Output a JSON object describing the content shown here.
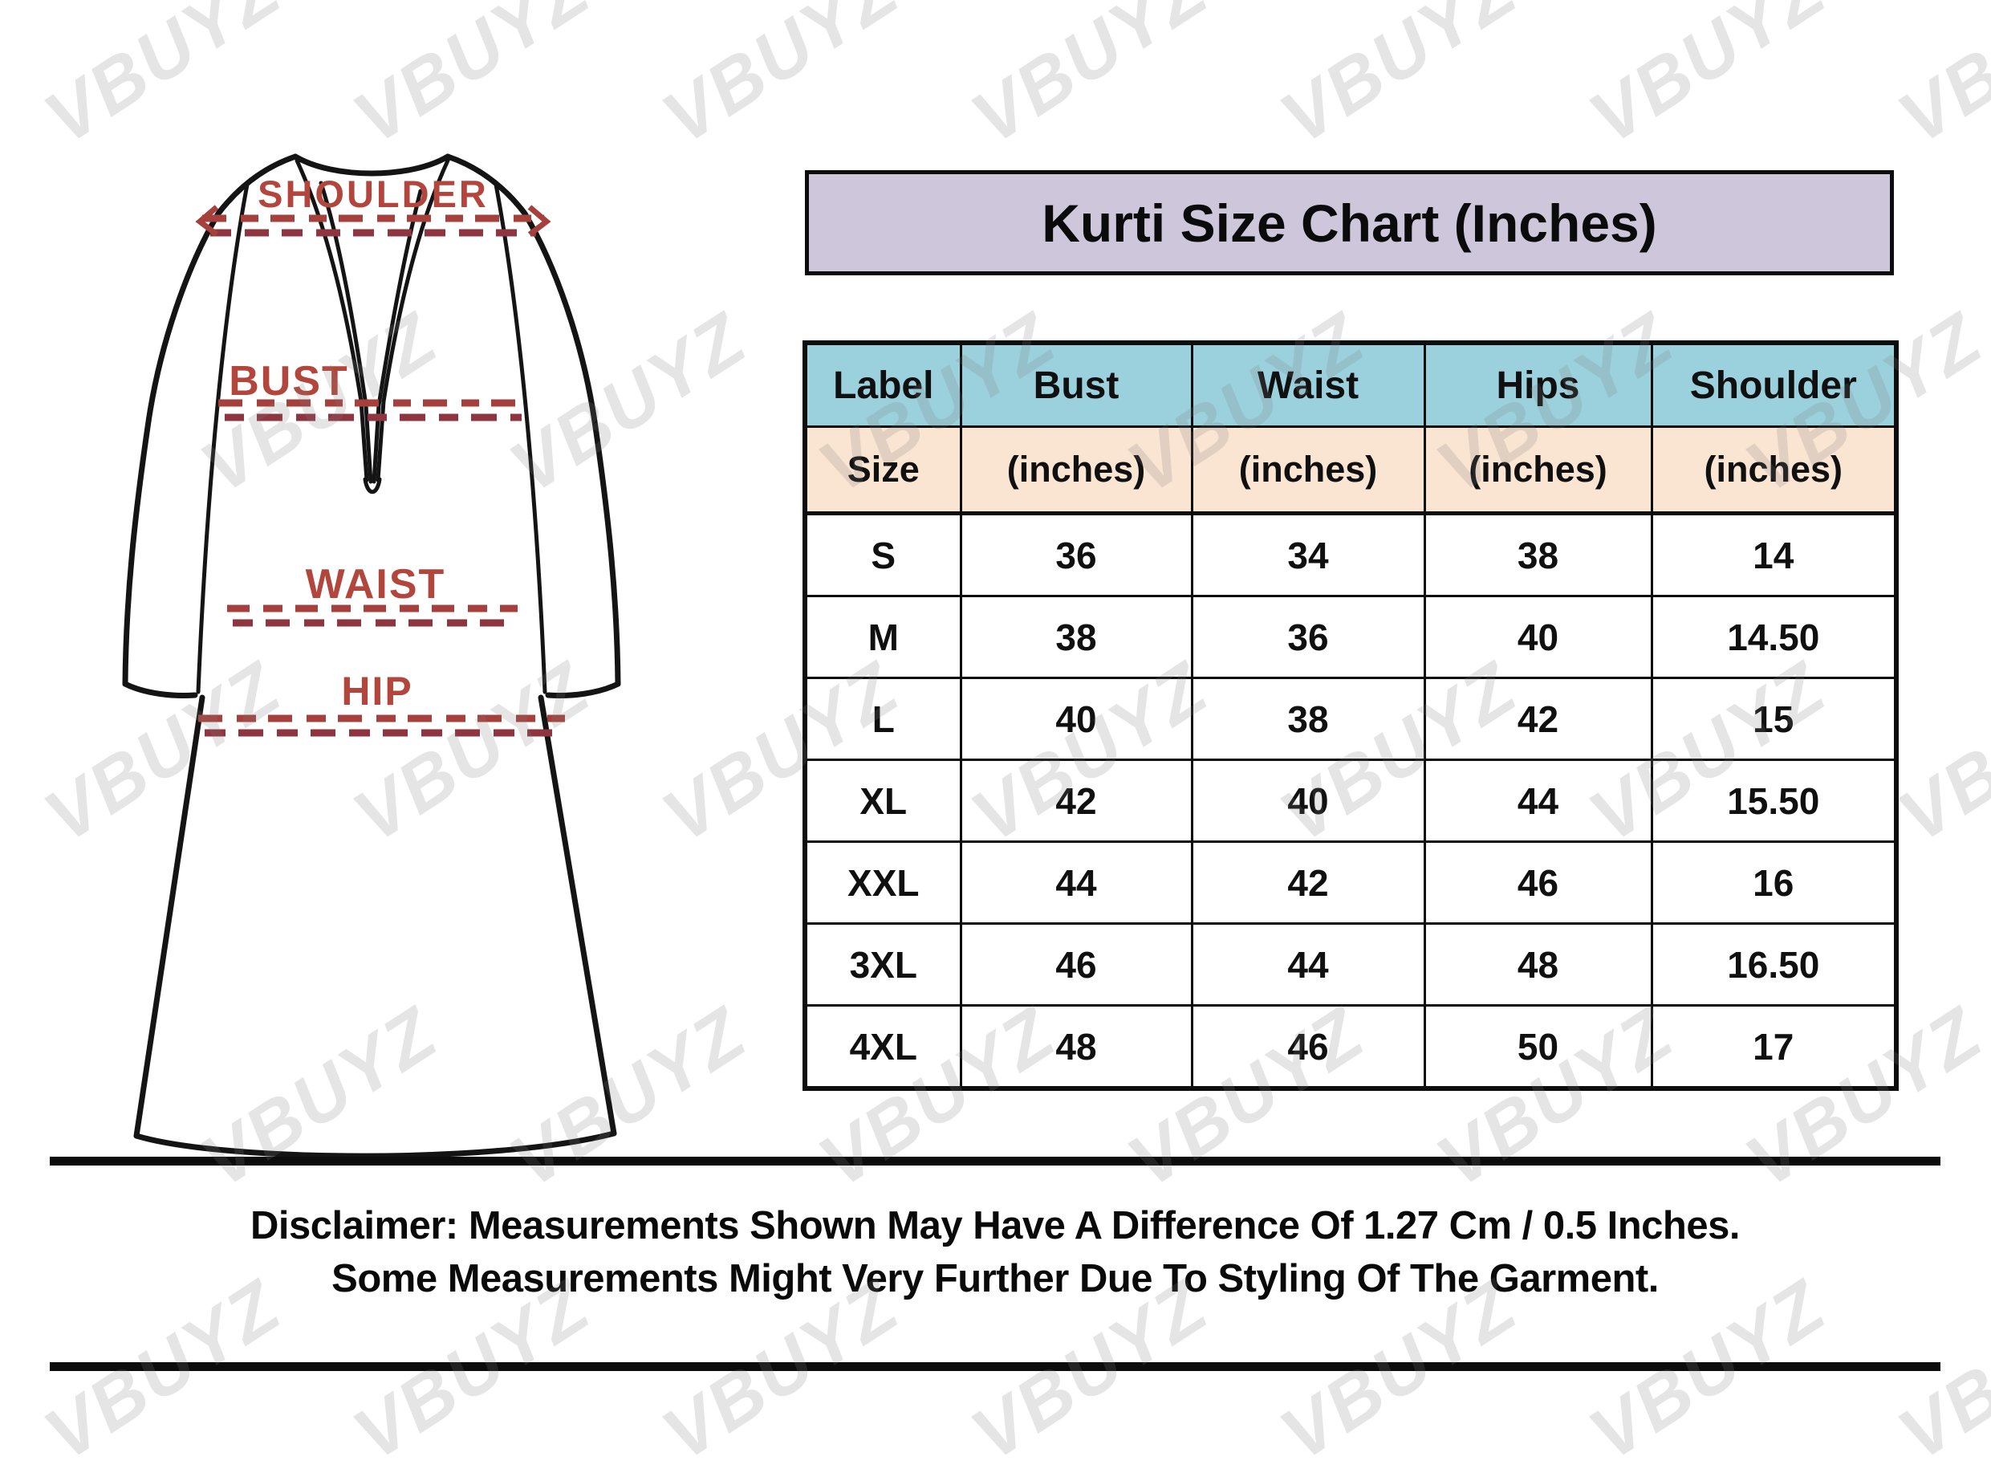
{
  "title": "Kurti Size Chart (Inches)",
  "watermark": {
    "text": "VBUYZ"
  },
  "colors": {
    "title_bg": "#cec7db",
    "header_bg": "#9bd0dd",
    "subheader_bg": "#fae4d2",
    "border_black": "#0d0d0d",
    "garment_label_red": "#b3463c",
    "garment_dash_red": "#a5403c",
    "garment_dash_dark_red": "#8f3540"
  },
  "garment": {
    "labels": {
      "shoulder": "SHOULDER",
      "bust": "BUST",
      "waist": "WAIST",
      "hip": "HIP"
    }
  },
  "table": {
    "columns": [
      {
        "label": "Label",
        "sublabel": "Size"
      },
      {
        "label": "Bust",
        "sublabel": "(inches)"
      },
      {
        "label": "Waist",
        "sublabel": "(inches)"
      },
      {
        "label": "Hips",
        "sublabel": "(inches)"
      },
      {
        "label": "Shoulder",
        "sublabel": "(inches)"
      }
    ],
    "rows": [
      [
        "S",
        "36",
        "34",
        "38",
        "14"
      ],
      [
        "M",
        "38",
        "36",
        "40",
        "14.50"
      ],
      [
        "L",
        "40",
        "38",
        "42",
        "15"
      ],
      [
        "XL",
        "42",
        "40",
        "44",
        "15.50"
      ],
      [
        "XXL",
        "44",
        "42",
        "46",
        "16"
      ],
      [
        "3XL",
        "46",
        "44",
        "48",
        "16.50"
      ],
      [
        "4XL",
        "48",
        "46",
        "50",
        "17"
      ]
    ]
  },
  "disclaimer": {
    "line1": "Disclaimer: Measurements Shown May Have A Difference Of 1.27 Cm / 0.5 Inches.",
    "line2": "Some Measurements Might Very Further Due To Styling Of The Garment."
  },
  "chart_data": {
    "type": "table",
    "title": "Kurti Size Chart (Inches)",
    "columns": [
      "Label / Size",
      "Bust (inches)",
      "Waist (inches)",
      "Hips (inches)",
      "Shoulder (inches)"
    ],
    "rows": [
      [
        "S",
        36,
        34,
        38,
        14
      ],
      [
        "M",
        38,
        36,
        40,
        14.5
      ],
      [
        "L",
        40,
        38,
        42,
        15
      ],
      [
        "XL",
        42,
        40,
        44,
        15.5
      ],
      [
        "XXL",
        44,
        42,
        46,
        16
      ],
      [
        "3XL",
        46,
        44,
        48,
        16.5
      ],
      [
        "4XL",
        48,
        46,
        50,
        17
      ]
    ]
  }
}
